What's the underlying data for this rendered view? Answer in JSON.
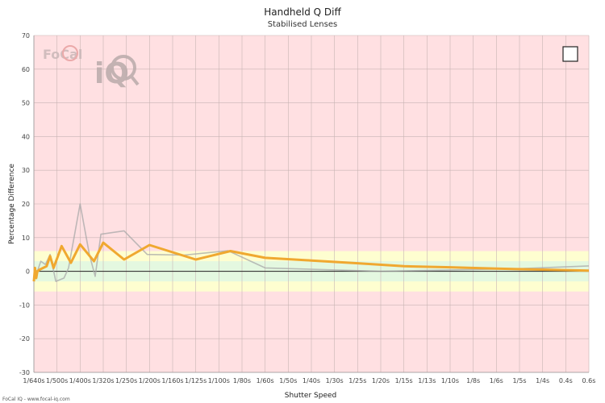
{
  "footer_text": "FoCal IQ - www.focal-iq.com",
  "logo": {
    "text": "FoCal",
    "mark": "iQ"
  },
  "colors": {
    "background_red": "#ffe0e2",
    "band_yellow": "#fefed0",
    "band_green": "#e4f8e0",
    "grid": "#c8b4b4",
    "zero_line": "#222222",
    "series_main": "#f0a830",
    "series_ref": "#a8a8a8"
  },
  "chart_data": {
    "type": "line",
    "title": "Handheld Q Diff",
    "subtitle": "Stabilised Lenses",
    "xlabel": "Shutter Speed",
    "ylabel": "Percentage Difference",
    "ylim": [
      -30,
      70
    ],
    "yticks": [
      -30,
      -20,
      -10,
      0,
      10,
      20,
      30,
      40,
      50,
      60,
      70
    ],
    "grid": true,
    "legend": "top-right",
    "bands": [
      {
        "from": -6,
        "to": 6,
        "color": "yellow"
      },
      {
        "from": -3,
        "to": 3,
        "color": "green"
      }
    ],
    "x_categories": [
      "1/640s",
      "1/500s",
      "1/400s",
      "1/320s",
      "1/250s",
      "1/200s",
      "1/160s",
      "1/125s",
      "1/100s",
      "1/80s",
      "1/60s",
      "1/50s",
      "1/40s",
      "1/30s",
      "1/25s",
      "1/20s",
      "1/15s",
      "1/13s",
      "1/10s",
      "1/8s",
      "1/6s",
      "1/5s",
      "1/4s",
      "0.4s",
      "0.6s"
    ],
    "series": [
      {
        "role": "main",
        "points": [
          [
            0.0,
            -3
          ],
          [
            0.05,
            1
          ],
          [
            0.1,
            -2
          ],
          [
            0.15,
            0
          ],
          [
            0.25,
            0.5
          ],
          [
            0.4,
            1
          ],
          [
            0.55,
            1.5
          ],
          [
            0.7,
            4.5
          ],
          [
            0.85,
            1
          ],
          [
            1.2,
            7.5
          ],
          [
            1.6,
            2.5
          ],
          [
            2.0,
            8
          ],
          [
            2.6,
            3
          ],
          [
            3.0,
            8.5
          ],
          [
            3.9,
            3.5
          ],
          [
            5.0,
            7.8
          ],
          [
            7.0,
            3.5
          ],
          [
            8.5,
            6
          ],
          [
            10.0,
            4
          ],
          [
            12.0,
            3.2
          ],
          [
            14.0,
            2.4
          ],
          [
            16.0,
            1.5
          ],
          [
            18.0,
            1.2
          ],
          [
            20.0,
            0.8
          ],
          [
            22.0,
            0.5
          ],
          [
            24.0,
            0.2
          ]
        ]
      },
      {
        "role": "reference",
        "points": [
          [
            0.0,
            -2
          ],
          [
            0.1,
            -1
          ],
          [
            0.3,
            3
          ],
          [
            0.5,
            2
          ],
          [
            0.7,
            5
          ],
          [
            0.95,
            -3
          ],
          [
            1.3,
            -2
          ],
          [
            1.5,
            1
          ],
          [
            2.0,
            20
          ],
          [
            2.4,
            5
          ],
          [
            2.65,
            -1.5
          ],
          [
            2.9,
            11
          ],
          [
            3.9,
            12
          ],
          [
            4.9,
            5
          ],
          [
            6.5,
            4.8
          ],
          [
            8.4,
            6.1
          ],
          [
            10.0,
            1
          ],
          [
            15.0,
            0
          ],
          [
            18.0,
            0.4
          ],
          [
            21.0,
            0.8
          ],
          [
            24.0,
            1.6
          ]
        ]
      }
    ]
  }
}
